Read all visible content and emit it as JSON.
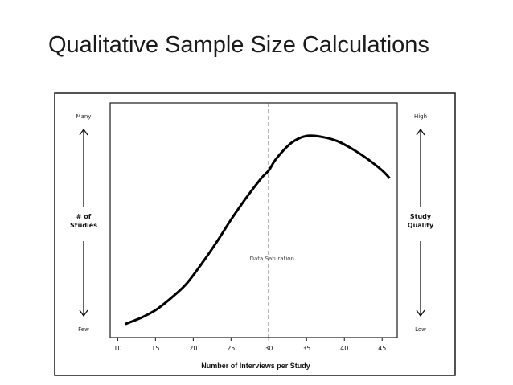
{
  "slide": {
    "title": "Qualitative Sample Size Calculations"
  },
  "chart_data": {
    "type": "line",
    "xlabel": "Number of Interviews per Study",
    "left_axis": {
      "label": "# of\nStudies",
      "top": "Many",
      "bottom": "Few"
    },
    "right_axis": {
      "label": "Study\nQuality",
      "top": "High",
      "bottom": "Low"
    },
    "xlim": [
      9,
      47
    ],
    "xticks": [
      10,
      15,
      20,
      25,
      30,
      35,
      40,
      45
    ],
    "ylim": [
      0,
      1
    ],
    "reference_line": {
      "x": 30,
      "style": "dashed",
      "label": "Data Saturation"
    },
    "series": [
      {
        "x": [
          11,
          13,
          15,
          17,
          19,
          21,
          23,
          25,
          27,
          29,
          30,
          31,
          33,
          35,
          37,
          39,
          41,
          43,
          45,
          46
        ],
        "y": [
          0.02,
          0.05,
          0.09,
          0.15,
          0.22,
          0.32,
          0.43,
          0.55,
          0.66,
          0.76,
          0.8,
          0.86,
          0.94,
          0.975,
          0.97,
          0.95,
          0.91,
          0.86,
          0.8,
          0.76
        ]
      }
    ],
    "grid": false,
    "legend": "none"
  }
}
